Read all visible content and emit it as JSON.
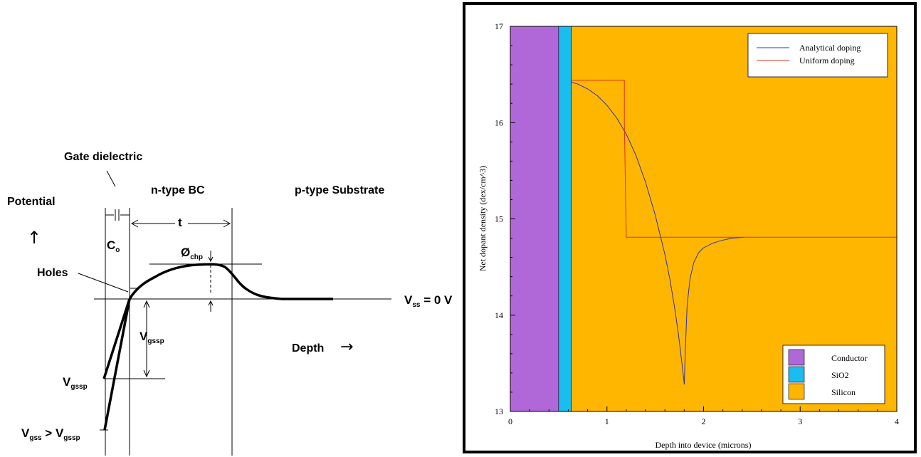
{
  "left_diagram": {
    "gate_dielectric": "Gate dielectric",
    "potential": "Potential",
    "potential_arrow": "↑",
    "n_type_bc": "n-type BC",
    "p_type_substrate": "p-type Substrate",
    "c_main": "C",
    "c_sub": "o",
    "t": "t",
    "phi_main": "Ø",
    "phi_sub": "chp",
    "holes": "Holes",
    "vss_main": "V",
    "vss_sub": "ss",
    "vss_rest": " = 0 V",
    "vgssp_main": "V",
    "vgssp_sub": "gssp",
    "depth": "Depth",
    "depth_arrow": "→",
    "vgssp_left_main": "V",
    "vgssp_left_sub": "gssp",
    "vgss_main": "V",
    "vgss_sub": "gss",
    "vgss_gt": " > V",
    "vgss_sub2": "gssp"
  },
  "chart_data": {
    "type": "line",
    "title": "",
    "xlabel": "Depth into device (microns)",
    "ylabel": "Net dopant density (dex/cm^3)",
    "xlim": [
      0,
      4
    ],
    "ylim": [
      13,
      17
    ],
    "x_ticks": [
      "0",
      "1",
      "2",
      "3",
      "4"
    ],
    "y_ticks": [
      "13",
      "14",
      "15",
      "16",
      "17"
    ],
    "regions": [
      {
        "name": "Conductor",
        "x_start": 0,
        "x_end": 0.5,
        "color": "#b068d8"
      },
      {
        "name": "SiO2",
        "x_start": 0.5,
        "x_end": 0.63,
        "color": "#19bdf0"
      },
      {
        "name": "Silicon",
        "x_start": 0.63,
        "x_end": 4,
        "color": "#ffb600"
      }
    ],
    "series": [
      {
        "name": "Analytical doping",
        "color": "#3030b0",
        "x": [
          0.63,
          0.7,
          0.8,
          0.9,
          1.0,
          1.1,
          1.2,
          1.3,
          1.4,
          1.5,
          1.6,
          1.65,
          1.7,
          1.74,
          1.77,
          1.79,
          1.8,
          1.81,
          1.83,
          1.86,
          1.9,
          1.95,
          2.0,
          2.1,
          2.2,
          2.3,
          2.42
        ],
        "y": [
          16.42,
          16.4,
          16.35,
          16.28,
          16.18,
          16.05,
          15.88,
          15.66,
          15.38,
          15.04,
          14.63,
          14.38,
          14.08,
          13.8,
          13.55,
          13.38,
          13.28,
          13.6,
          14.1,
          14.38,
          14.55,
          14.65,
          14.7,
          14.75,
          14.78,
          14.8,
          14.81
        ]
      },
      {
        "name": "Uniform doping",
        "color": "#e03020",
        "x": [
          0.63,
          1.18,
          1.18,
          1.2,
          4.0
        ],
        "y": [
          16.44,
          16.44,
          16.0,
          14.81,
          14.81
        ]
      }
    ],
    "legend_position": "top-right",
    "regions_legend_position": "bottom-right"
  }
}
